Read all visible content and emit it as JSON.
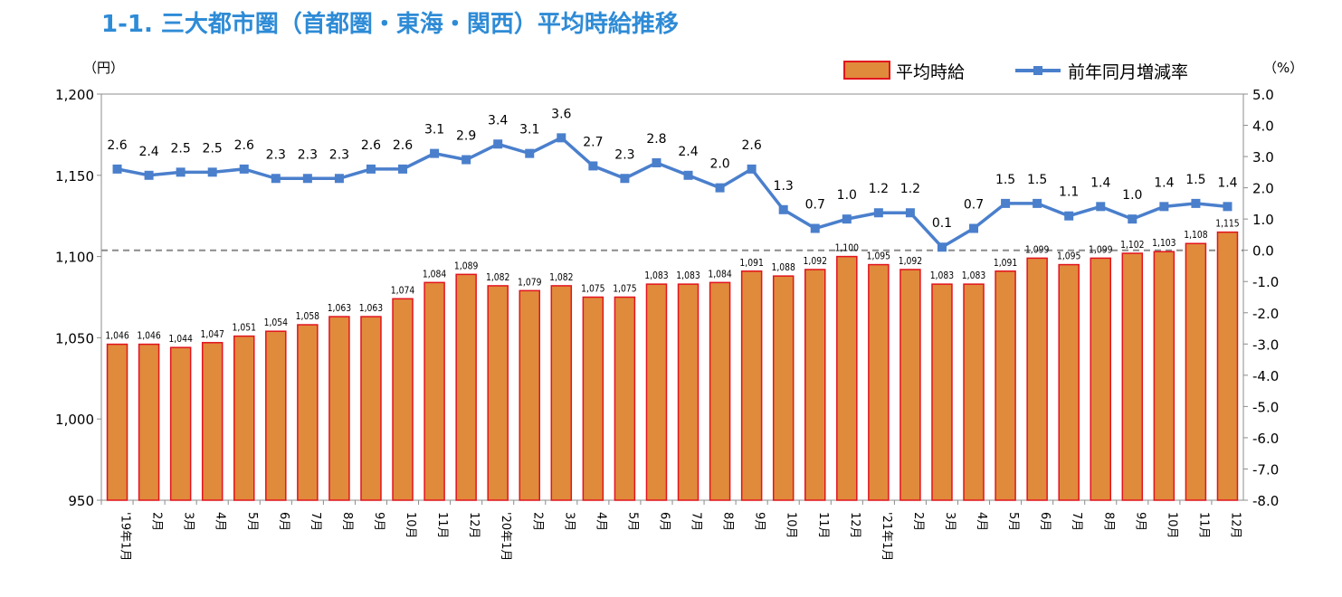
{
  "title": "1-1.  三大都市圏（首都圏・東海・関西）平均時給推移",
  "chart_data": {
    "type": "bar+line",
    "categories": [
      "'19年1月",
      "2月",
      "3月",
      "4月",
      "5月",
      "6月",
      "7月",
      "8月",
      "9月",
      "10月",
      "11月",
      "12月",
      "'20年1月",
      "2月",
      "3月",
      "4月",
      "5月",
      "6月",
      "7月",
      "8月",
      "9月",
      "10月",
      "11月",
      "12月",
      "'21年1月",
      "2月",
      "3月",
      "4月",
      "5月",
      "6月",
      "7月",
      "8月",
      "9月",
      "10月",
      "11月",
      "12月"
    ],
    "series": [
      {
        "name": "平均時給",
        "type": "bar",
        "axis": "left",
        "color": "#e08a3c",
        "border": "#e2141e",
        "values": [
          1046,
          1046,
          1044,
          1047,
          1051,
          1054,
          1058,
          1063,
          1063,
          1074,
          1084,
          1089,
          1082,
          1079,
          1082,
          1075,
          1075,
          1083,
          1083,
          1084,
          1091,
          1088,
          1092,
          1100,
          1095,
          1092,
          1083,
          1083,
          1091,
          1099,
          1095,
          1099,
          1102,
          1103,
          1108,
          1115
        ]
      },
      {
        "name": "前年同月増減率",
        "type": "line",
        "axis": "right",
        "color": "#4a7fcc",
        "marker": "square",
        "values": [
          2.6,
          2.4,
          2.5,
          2.5,
          2.6,
          2.3,
          2.3,
          2.3,
          2.6,
          2.6,
          3.1,
          2.9,
          3.4,
          3.1,
          3.6,
          2.7,
          2.3,
          2.8,
          2.4,
          2.0,
          2.6,
          1.3,
          0.7,
          1.0,
          1.2,
          1.2,
          0.1,
          0.7,
          1.5,
          1.5,
          1.1,
          1.4,
          1.0,
          1.4,
          1.5,
          1.4
        ]
      }
    ],
    "y_left": {
      "label": "（円）",
      "min": 950,
      "max": 1200,
      "ticks": [
        "950",
        "1,000",
        "1,050",
        "1,100",
        "1,150",
        "1,200"
      ]
    },
    "y_right": {
      "label": "（%）",
      "min": -8.0,
      "max": 5.0,
      "ticks": [
        "-8.0",
        "-7.0",
        "-6.0",
        "-5.0",
        "-4.0",
        "-3.0",
        "-2.0",
        "-1.0",
        "0.0",
        "1.0",
        "2.0",
        "3.0",
        "4.0",
        "5.0"
      ]
    },
    "zero_line": "dashed",
    "legend_position": "top-right",
    "grid": false
  }
}
